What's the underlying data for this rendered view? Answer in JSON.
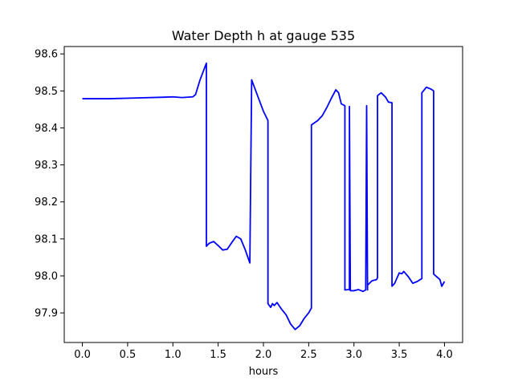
{
  "chart_data": {
    "type": "line",
    "title": "Water Depth h at gauge 535",
    "xlabel": "hours",
    "ylabel": "",
    "xlim": [
      -0.2,
      4.2
    ],
    "ylim": [
      97.82,
      98.62
    ],
    "grid": false,
    "xticks": [
      0.0,
      0.5,
      1.0,
      1.5,
      2.0,
      2.5,
      3.0,
      3.5,
      4.0
    ],
    "xtick_labels": [
      "0.0",
      "0.5",
      "1.0",
      "1.5",
      "2.0",
      "2.5",
      "3.0",
      "3.5",
      "4.0"
    ],
    "yticks": [
      97.9,
      98.0,
      98.1,
      98.2,
      98.3,
      98.4,
      98.5,
      98.6
    ],
    "ytick_labels": [
      "97.9",
      "98.0",
      "98.1",
      "98.2",
      "98.3",
      "98.4",
      "98.5",
      "98.6"
    ],
    "series": [
      {
        "color": "#0000ff",
        "x": [
          0.0,
          0.3,
          0.6,
          0.9,
          1.0,
          1.1,
          1.22,
          1.25,
          1.3,
          1.37,
          1.37,
          1.4,
          1.45,
          1.5,
          1.55,
          1.6,
          1.65,
          1.7,
          1.75,
          1.8,
          1.85,
          1.87,
          1.87,
          1.9,
          2.0,
          2.05,
          2.05,
          2.08,
          2.1,
          2.12,
          2.15,
          2.2,
          2.25,
          2.3,
          2.35,
          2.4,
          2.45,
          2.5,
          2.53,
          2.53,
          2.6,
          2.65,
          2.7,
          2.75,
          2.8,
          2.83,
          2.86,
          2.9,
          2.9,
          2.95,
          2.95,
          2.96,
          3.0,
          3.05,
          3.1,
          3.13,
          3.14,
          3.15,
          3.15,
          3.2,
          3.25,
          3.26,
          3.26,
          3.3,
          3.35,
          3.38,
          3.42,
          3.42,
          3.45,
          3.5,
          3.53,
          3.55,
          3.6,
          3.65,
          3.7,
          3.75,
          3.75,
          3.8,
          3.85,
          3.88,
          3.88,
          3.95,
          3.97,
          4.0
        ],
        "y": [
          98.479,
          98.479,
          98.481,
          98.483,
          98.484,
          98.482,
          98.484,
          98.49,
          98.53,
          98.575,
          98.08,
          98.088,
          98.093,
          98.082,
          98.07,
          98.072,
          98.09,
          98.107,
          98.1,
          98.07,
          98.035,
          98.53,
          98.53,
          98.51,
          98.445,
          98.42,
          97.925,
          97.915,
          97.925,
          97.92,
          97.928,
          97.91,
          97.895,
          97.87,
          97.855,
          97.865,
          97.885,
          97.9,
          97.913,
          98.408,
          98.42,
          98.433,
          98.455,
          98.48,
          98.503,
          98.495,
          98.465,
          98.46,
          97.962,
          97.963,
          98.458,
          97.96,
          97.96,
          97.963,
          97.958,
          97.962,
          98.46,
          97.962,
          97.975,
          97.987,
          97.99,
          97.995,
          98.487,
          98.495,
          98.483,
          98.47,
          98.468,
          97.972,
          97.98,
          98.008,
          98.006,
          98.012,
          97.998,
          97.98,
          97.985,
          97.993,
          98.495,
          98.51,
          98.505,
          98.5,
          98.005,
          97.99,
          97.972,
          97.985
        ]
      }
    ]
  }
}
